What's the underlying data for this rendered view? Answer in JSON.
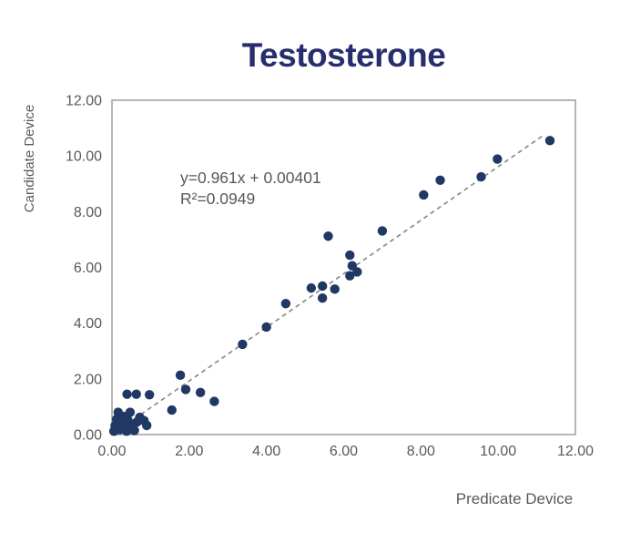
{
  "title": "Testosterone",
  "title_color": "#272e6d",
  "text_color": "#595959",
  "frame_color": "#a3a3a3",
  "axis": {
    "x_label": "Predicate Device",
    "y_label": "Candidate Device",
    "x_ticks": [
      "0.00",
      "2.00",
      "4.00",
      "6.00",
      "8.00",
      "10.00",
      "12.00"
    ],
    "y_ticks": [
      "0.00",
      "2.00",
      "4.00",
      "6.00",
      "8.00",
      "10.00",
      "12.00"
    ]
  },
  "annotation": {
    "equation": "y=0.961x + 0.00401",
    "r_squared": "R²=0.0949"
  },
  "chart_data": {
    "type": "scatter",
    "title": "Testosterone",
    "xlabel": "Predicate Device",
    "ylabel": "Candidate Device",
    "xlim": [
      0,
      12
    ],
    "ylim": [
      0,
      12
    ],
    "grid": false,
    "legend": false,
    "marker_color": "#1f3864",
    "marker_radius": 5.2,
    "trendline": {
      "slope": 0.961,
      "intercept": 0.00401,
      "x_start": 0.05,
      "x_end": 11.2,
      "style": "dashed",
      "color": "#8c8c8c",
      "equation_label": "y=0.961x + 0.00401",
      "r2_label": "R²=0.0949"
    },
    "points": [
      [
        0.05,
        0.12
      ],
      [
        0.08,
        0.32
      ],
      [
        0.12,
        0.55
      ],
      [
        0.16,
        0.8
      ],
      [
        0.2,
        0.18
      ],
      [
        0.24,
        0.45
      ],
      [
        0.3,
        0.65
      ],
      [
        0.33,
        0.28
      ],
      [
        0.38,
        0.12
      ],
      [
        0.42,
        0.5
      ],
      [
        0.47,
        0.8
      ],
      [
        0.52,
        0.3
      ],
      [
        0.58,
        0.15
      ],
      [
        0.65,
        0.45
      ],
      [
        0.72,
        0.62
      ],
      [
        0.83,
        0.5
      ],
      [
        0.9,
        0.33
      ],
      [
        0.39,
        1.45
      ],
      [
        0.63,
        1.45
      ],
      [
        0.97,
        1.43
      ],
      [
        1.55,
        0.88
      ],
      [
        1.77,
        2.13
      ],
      [
        1.91,
        1.62
      ],
      [
        2.29,
        1.51
      ],
      [
        2.65,
        1.19
      ],
      [
        3.38,
        3.24
      ],
      [
        4.0,
        3.86
      ],
      [
        4.5,
        4.7
      ],
      [
        5.16,
        5.26
      ],
      [
        5.45,
        5.33
      ],
      [
        5.45,
        4.9
      ],
      [
        5.6,
        7.12
      ],
      [
        5.77,
        5.22
      ],
      [
        6.16,
        6.44
      ],
      [
        6.22,
        6.06
      ],
      [
        6.16,
        5.7
      ],
      [
        6.35,
        5.84
      ],
      [
        7.0,
        7.31
      ],
      [
        8.07,
        8.6
      ],
      [
        8.5,
        9.13
      ],
      [
        9.56,
        9.25
      ],
      [
        9.98,
        9.89
      ],
      [
        11.34,
        10.55
      ]
    ]
  }
}
